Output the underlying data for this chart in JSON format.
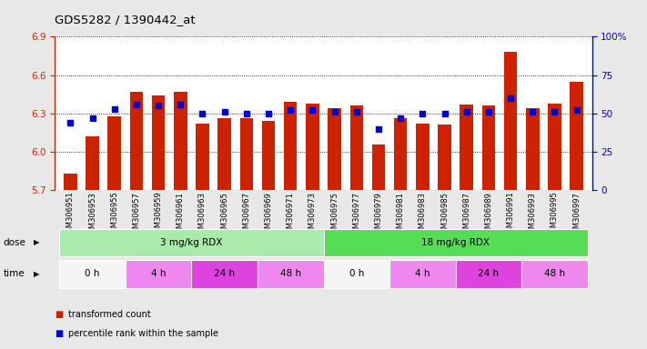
{
  "title": "GDS5282 / 1390442_at",
  "samples": [
    "GSM306951",
    "GSM306953",
    "GSM306955",
    "GSM306957",
    "GSM306959",
    "GSM306961",
    "GSM306963",
    "GSM306965",
    "GSM306967",
    "GSM306969",
    "GSM306971",
    "GSM306973",
    "GSM306975",
    "GSM306977",
    "GSM306979",
    "GSM306981",
    "GSM306983",
    "GSM306985",
    "GSM306987",
    "GSM306989",
    "GSM306991",
    "GSM306993",
    "GSM306995",
    "GSM306997"
  ],
  "bar_values": [
    5.83,
    6.12,
    6.28,
    6.47,
    6.44,
    6.47,
    6.22,
    6.26,
    6.26,
    6.24,
    6.39,
    6.38,
    6.34,
    6.36,
    6.06,
    6.26,
    6.22,
    6.21,
    6.37,
    6.36,
    6.78,
    6.34,
    6.38,
    6.55
  ],
  "percentile_values": [
    44,
    47,
    53,
    56,
    55,
    56,
    50,
    51,
    50,
    50,
    52,
    52,
    51,
    51,
    40,
    47,
    50,
    50,
    51,
    51,
    60,
    51,
    51,
    52
  ],
  "ylim": [
    5.7,
    6.9
  ],
  "yticks": [
    5.7,
    6.0,
    6.3,
    6.6,
    6.9
  ],
  "right_ylim": [
    0,
    100
  ],
  "right_yticks": [
    0,
    25,
    50,
    75,
    100
  ],
  "bar_color": "#cc2200",
  "percentile_color": "#0000cc",
  "bg_color": "#e8e8e8",
  "plot_bg": "#ffffff",
  "dose_groups": [
    {
      "text": "3 mg/kg RDX",
      "start": 0,
      "end": 11,
      "color": "#aaeaaa"
    },
    {
      "text": "18 mg/kg RDX",
      "start": 12,
      "end": 23,
      "color": "#55dd55"
    }
  ],
  "time_segments": [
    {
      "text": "0 h",
      "start": 0,
      "end": 2,
      "color": "#f5f5f5"
    },
    {
      "text": "4 h",
      "start": 3,
      "end": 5,
      "color": "#ee88ee"
    },
    {
      "text": "24 h",
      "start": 6,
      "end": 8,
      "color": "#dd44dd"
    },
    {
      "text": "48 h",
      "start": 9,
      "end": 11,
      "color": "#ee88ee"
    },
    {
      "text": "0 h",
      "start": 12,
      "end": 14,
      "color": "#f5f5f5"
    },
    {
      "text": "4 h",
      "start": 15,
      "end": 17,
      "color": "#ee88ee"
    },
    {
      "text": "24 h",
      "start": 18,
      "end": 20,
      "color": "#dd44dd"
    },
    {
      "text": "48 h",
      "start": 21,
      "end": 23,
      "color": "#ee88ee"
    }
  ],
  "legend": [
    {
      "label": "transformed count",
      "color": "#cc2200"
    },
    {
      "label": "percentile rank within the sample",
      "color": "#0000cc"
    }
  ]
}
